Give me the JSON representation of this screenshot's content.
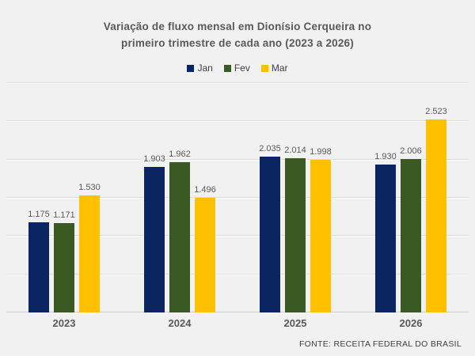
{
  "title": "Variação de fluxo mensal em Dionísio Cerqueira no\nprimeiro trimestre de cada ano (2023 a 2026)",
  "source_note": "FONTE: RECEITA FEDERAL DO BRASIL",
  "colors": {
    "background": "#f1f1f1",
    "gridline": "#dddddd",
    "baseline": "#c8c8c8",
    "text": "#595959",
    "jan": "#0b2563",
    "fev": "#3b5a23",
    "mar": "#ffc000"
  },
  "chart_data": {
    "type": "bar",
    "title": "Variação de fluxo mensal em Dionísio Cerqueira no primeiro trimestre de cada ano (2023 a 2026)",
    "categories": [
      "2023",
      "2024",
      "2025",
      "2026"
    ],
    "series": [
      {
        "name": "Jan",
        "color": "#0b2563",
        "values": [
          1175,
          1903,
          2035,
          1930
        ],
        "labels": [
          "1.175",
          "1.903",
          "2.035",
          "1.930"
        ]
      },
      {
        "name": "Fev",
        "color": "#3b5a23",
        "values": [
          1171,
          1962,
          2014,
          2006
        ],
        "labels": [
          "1.171",
          "1.962",
          "2.014",
          "2.006"
        ]
      },
      {
        "name": "Mar",
        "color": "#ffc000",
        "values": [
          1530,
          1496,
          1998,
          2523
        ],
        "labels": [
          "1.530",
          "1.496",
          "1.998",
          "2.523"
        ]
      }
    ],
    "xlabel": "",
    "ylabel": "",
    "ylim": [
      0,
      3000
    ],
    "grid": true,
    "grid_step": 500,
    "y_tick_labels_visible": false,
    "legend_position": "top",
    "data_labels_visible": true
  }
}
